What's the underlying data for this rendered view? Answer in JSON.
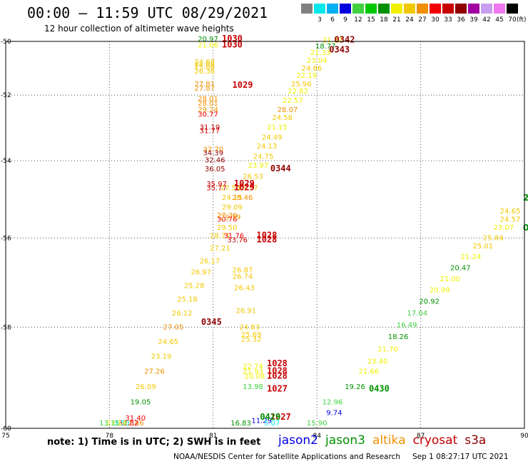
{
  "header": {
    "title": "00:00 – 11:59 UTC 08/29/2021",
    "subtitle": "12 hour collection of altimeter wave heights"
  },
  "color_scale": {
    "unit": "(ft)",
    "swatches": [
      {
        "label": "",
        "color": "#808080"
      },
      {
        "label": "3",
        "color": "#00e8e8"
      },
      {
        "label": "6",
        "color": "#00b0f0"
      },
      {
        "label": "9",
        "color": "#0000e0"
      },
      {
        "label": "12",
        "color": "#40d040"
      },
      {
        "label": "15",
        "color": "#00c800"
      },
      {
        "label": "18",
        "color": "#009000"
      },
      {
        "label": "21",
        "color": "#f0f000"
      },
      {
        "label": "24",
        "color": "#f0c800"
      },
      {
        "label": "27",
        "color": "#f09000"
      },
      {
        "label": "30",
        "color": "#f00000"
      },
      {
        "label": "33",
        "color": "#c80000"
      },
      {
        "label": "36",
        "color": "#900000"
      },
      {
        "label": "39",
        "color": "#a000a0"
      },
      {
        "label": "42",
        "color": "#c8a0f0"
      },
      {
        "label": "45",
        "color": "#f078f0"
      },
      {
        "label": "70",
        "color": "#000000"
      }
    ]
  },
  "map": {
    "lon_ticks": [
      75,
      78,
      81,
      84,
      87,
      90
    ],
    "lat_ticks": [
      -50,
      -52,
      -54,
      -56,
      -58,
      -60
    ],
    "lon_range": [
      75,
      90
    ],
    "lat_range": [
      -50,
      -60
    ]
  },
  "observations": [
    {
      "lon": 80.85,
      "lat": -50.0,
      "text": "20.97",
      "color": "#009000"
    },
    {
      "lon": 80.85,
      "lat": -50.25,
      "text": "21.06",
      "color": "#f0f000"
    },
    {
      "lon": 80.75,
      "lat": -50.9,
      "text": "24.68",
      "color": "#f0c800"
    },
    {
      "lon": 80.75,
      "lat": -51.0,
      "text": "24.08",
      "color": "#f0c800"
    },
    {
      "lon": 80.75,
      "lat": -51.1,
      "text": "25.08",
      "color": "#f0c800"
    },
    {
      "lon": 80.75,
      "lat": -51.25,
      "text": "26.36",
      "color": "#f0c800"
    },
    {
      "lon": 80.75,
      "lat": -51.7,
      "text": "27.81",
      "color": "#f09000"
    },
    {
      "lon": 80.75,
      "lat": -51.85,
      "text": "27.87",
      "color": "#f09000"
    },
    {
      "lon": 80.85,
      "lat": -52.2,
      "text": "28.01",
      "color": "#f09000"
    },
    {
      "lon": 80.85,
      "lat": -52.35,
      "text": "28.01",
      "color": "#f09000"
    },
    {
      "lon": 80.85,
      "lat": -52.55,
      "text": "29.24",
      "color": "#f09000"
    },
    {
      "lon": 80.85,
      "lat": -52.7,
      "text": "30.77",
      "color": "#f00000"
    },
    {
      "lon": 80.9,
      "lat": -53.1,
      "text": "31.19",
      "color": "#c80000"
    },
    {
      "lon": 80.9,
      "lat": -53.2,
      "text": "31.77",
      "color": "#c80000"
    },
    {
      "lon": 81.0,
      "lat": -53.75,
      "text": "32.70",
      "color": "#f09000"
    },
    {
      "lon": 81.0,
      "lat": -53.85,
      "text": "34.39",
      "color": "#900000"
    },
    {
      "lon": 81.05,
      "lat": -54.05,
      "text": "32.46",
      "color": "#900000"
    },
    {
      "lon": 81.05,
      "lat": -54.3,
      "text": "36.05",
      "color": "#900000"
    },
    {
      "lon": 81.1,
      "lat": -54.7,
      "text": "35.97",
      "color": "#c80000"
    },
    {
      "lon": 81.1,
      "lat": -54.8,
      "text": "35.77",
      "color": "#c80000"
    },
    {
      "lon": 81.5,
      "lat": -54.8,
      "text": "27.53",
      "color": "#f0c800"
    },
    {
      "lon": 81.55,
      "lat": -55.05,
      "text": "24.15",
      "color": "#f0c800"
    },
    {
      "lon": 81.55,
      "lat": -55.3,
      "text": "29.09",
      "color": "#f0c800"
    },
    {
      "lon": 81.4,
      "lat": -55.5,
      "text": "27.30",
      "color": "#f09000"
    },
    {
      "lon": 81.4,
      "lat": -55.6,
      "text": "30.76",
      "color": "#f00000"
    },
    {
      "lon": 81.5,
      "lat": -55.55,
      "text": "29.39",
      "color": "#f09000"
    },
    {
      "lon": 81.4,
      "lat": -55.8,
      "text": "29.50",
      "color": "#f0c800"
    },
    {
      "lon": 81.2,
      "lat": -56.0,
      "text": "28.71",
      "color": "#f0c800"
    },
    {
      "lon": 81.6,
      "lat": -56.0,
      "text": "31.76",
      "color": "#f00000"
    },
    {
      "lon": 81.7,
      "lat": -56.1,
      "text": "33.76",
      "color": "#c80000"
    },
    {
      "lon": 81.2,
      "lat": -56.3,
      "text": "27.21",
      "color": "#f0c800"
    },
    {
      "lon": 80.9,
      "lat": -56.6,
      "text": "26.17",
      "color": "#f0c800"
    },
    {
      "lon": 80.65,
      "lat": -56.85,
      "text": "26.97",
      "color": "#f0c800"
    },
    {
      "lon": 81.85,
      "lat": -56.8,
      "text": "26.87",
      "color": "#f0c800"
    },
    {
      "lon": 81.85,
      "lat": -56.95,
      "text": "26.74",
      "color": "#f0c800"
    },
    {
      "lon": 80.45,
      "lat": -57.15,
      "text": "25.28",
      "color": "#f0c800"
    },
    {
      "lon": 81.9,
      "lat": -57.2,
      "text": "26.43",
      "color": "#f0c800"
    },
    {
      "lon": 80.25,
      "lat": -57.45,
      "text": "25.18",
      "color": "#f0c800"
    },
    {
      "lon": 80.1,
      "lat": -57.75,
      "text": "26.12",
      "color": "#f0c800"
    },
    {
      "lon": 81.95,
      "lat": -57.7,
      "text": "26.91",
      "color": "#f0c800"
    },
    {
      "lon": 79.85,
      "lat": -58.05,
      "text": "27.05",
      "color": "#f09000"
    },
    {
      "lon": 82.05,
      "lat": -58.05,
      "text": "24.83",
      "color": "#f0c800"
    },
    {
      "lon": 82.1,
      "lat": -58.2,
      "text": "25.69",
      "color": "#f0c800"
    },
    {
      "lon": 82.1,
      "lat": -58.3,
      "text": "25.32",
      "color": "#f0c800"
    },
    {
      "lon": 79.7,
      "lat": -58.35,
      "text": "24.65",
      "color": "#f0c800"
    },
    {
      "lon": 79.5,
      "lat": -58.65,
      "text": "23.19",
      "color": "#f0c800"
    },
    {
      "lon": 82.15,
      "lat": -58.85,
      "text": "22.74",
      "color": "#f0f000"
    },
    {
      "lon": 82.15,
      "lat": -58.95,
      "text": "21.93",
      "color": "#f0f000"
    },
    {
      "lon": 82.2,
      "lat": -59.05,
      "text": "20.08",
      "color": "#f0f000"
    },
    {
      "lon": 79.3,
      "lat": -58.95,
      "text": "27.26",
      "color": "#f09000"
    },
    {
      "lon": 79.05,
      "lat": -59.25,
      "text": "26.09",
      "color": "#f0c800"
    },
    {
      "lon": 82.15,
      "lat": -59.25,
      "text": "13.98",
      "color": "#40d040"
    },
    {
      "lon": 78.9,
      "lat": -59.55,
      "text": "19.05",
      "color": "#009000"
    },
    {
      "lon": 78.75,
      "lat": -59.85,
      "text": "31.40",
      "color": "#f00000"
    },
    {
      "lon": 78.7,
      "lat": -60.1,
      "text": "22.46",
      "color": "#f09000"
    },
    {
      "lon": 82.4,
      "lat": -59.9,
      "text": "11.29",
      "color": "#0000e0"
    },
    {
      "lon": 78.55,
      "lat": -60.4,
      "text": "31.82",
      "color": "#f00000"
    },
    {
      "lon": 78.35,
      "lat": -60.7,
      "text": "3.50",
      "color": "#00e8e8"
    },
    {
      "lon": 78.2,
      "lat": -60.95,
      "text": "23.14",
      "color": "#f0f000"
    },
    {
      "lon": 78.0,
      "lat": -61.15,
      "text": "13.15",
      "color": "#40d040"
    },
    {
      "lon": 84.0,
      "lat": -60.1,
      "text": "15.90",
      "color": "#40d040"
    },
    {
      "lon": 82.7,
      "lat": -60.85,
      "text": "5.07",
      "color": "#00e8e8"
    },
    {
      "lon": 81.8,
      "lat": -61.1,
      "text": "16.83",
      "color": "#009000"
    },
    {
      "lon": 84.45,
      "lat": -50.05,
      "text": "21.32",
      "color": "#f0f000"
    },
    {
      "lon": 84.25,
      "lat": -50.3,
      "text": "18.77",
      "color": "#009000"
    },
    {
      "lon": 84.1,
      "lat": -50.55,
      "text": "21.33",
      "color": "#f0f000"
    },
    {
      "lon": 84.0,
      "lat": -50.85,
      "text": "23.04",
      "color": "#f0f000"
    },
    {
      "lon": 83.85,
      "lat": -51.15,
      "text": "24.86",
      "color": "#f0c800"
    },
    {
      "lon": 83.7,
      "lat": -51.4,
      "text": "22.19",
      "color": "#f0f000"
    },
    {
      "lon": 83.55,
      "lat": -51.7,
      "text": "25.96",
      "color": "#f0c800"
    },
    {
      "lon": 83.45,
      "lat": -51.95,
      "text": "22.82",
      "color": "#f0f000"
    },
    {
      "lon": 83.3,
      "lat": -52.25,
      "text": "22.57",
      "color": "#f0f000"
    },
    {
      "lon": 83.15,
      "lat": -52.55,
      "text": "28.07",
      "color": "#f09000"
    },
    {
      "lon": 83.0,
      "lat": -52.8,
      "text": "24.58",
      "color": "#f0c800"
    },
    {
      "lon": 82.85,
      "lat": -53.1,
      "text": "21.15",
      "color": "#f0f000"
    },
    {
      "lon": 82.7,
      "lat": -53.4,
      "text": "24.49",
      "color": "#f0c800"
    },
    {
      "lon": 82.55,
      "lat": -53.65,
      "text": "24.13",
      "color": "#f0c800"
    },
    {
      "lon": 82.45,
      "lat": -53.95,
      "text": "24.75",
      "color": "#f0c800"
    },
    {
      "lon": 82.3,
      "lat": -54.2,
      "text": "23.97",
      "color": "#f0f000"
    },
    {
      "lon": 82.15,
      "lat": -54.5,
      "text": "26.53",
      "color": "#f0c800"
    },
    {
      "lon": 82.0,
      "lat": -54.8,
      "text": "26.57",
      "color": "#f0c800"
    },
    {
      "lon": 81.85,
      "lat": -55.05,
      "text": "28.46",
      "color": "#f09000"
    },
    {
      "lon": 85.1,
      "lat": -59.25,
      "text": "19.26",
      "color": "#009000"
    },
    {
      "lon": 84.45,
      "lat": -59.55,
      "text": "12.96",
      "color": "#40d040"
    },
    {
      "lon": 84.5,
      "lat": -59.75,
      "text": "9.74",
      "color": "#0000e0"
    },
    {
      "lon": 85.5,
      "lat": -58.95,
      "text": "21.66",
      "color": "#f0f000"
    },
    {
      "lon": 85.75,
      "lat": -58.75,
      "text": "23.40",
      "color": "#f0f000"
    },
    {
      "lon": 86.05,
      "lat": -58.5,
      "text": "21.70",
      "color": "#f0f000"
    },
    {
      "lon": 86.35,
      "lat": -58.25,
      "text": "18.26",
      "color": "#009000"
    },
    {
      "lon": 86.6,
      "lat": -58.0,
      "text": "16.49",
      "color": "#40d040"
    },
    {
      "lon": 86.9,
      "lat": -57.75,
      "text": "17.04",
      "color": "#40d040"
    },
    {
      "lon": 87.25,
      "lat": -57.5,
      "text": "20.92",
      "color": "#009000"
    },
    {
      "lon": 87.55,
      "lat": -57.25,
      "text": "20.99",
      "color": "#f0f000"
    },
    {
      "lon": 87.85,
      "lat": -57.0,
      "text": "21.00",
      "color": "#f0f000"
    },
    {
      "lon": 88.15,
      "lat": -56.75,
      "text": "20.47",
      "color": "#009000"
    },
    {
      "lon": 88.45,
      "lat": -56.5,
      "text": "21.24",
      "color": "#f0f000"
    },
    {
      "lon": 88.8,
      "lat": -56.25,
      "text": "25.01",
      "color": "#f0c800"
    },
    {
      "lon": 89.1,
      "lat": -56.05,
      "text": "25.84",
      "color": "#f0c800"
    },
    {
      "lon": 89.4,
      "lat": -55.8,
      "text": "23.07",
      "color": "#f0f000"
    },
    {
      "lon": 89.65,
      "lat": -55.6,
      "text": "24.57",
      "color": "#f0c800"
    },
    {
      "lon": 89.9,
      "lat": -55.4,
      "text": "24.65",
      "color": "#f0c800"
    }
  ],
  "time_labels": [
    {
      "lon": 81.55,
      "lat": -50.0,
      "text": "1030",
      "color": "#c80000"
    },
    {
      "lon": 81.55,
      "lat": -50.25,
      "text": "1030",
      "color": "#c80000"
    },
    {
      "lon": 81.85,
      "lat": -51.75,
      "text": "1029",
      "color": "#c80000"
    },
    {
      "lon": 81.9,
      "lat": -54.7,
      "text": "1029",
      "color": "#c80000"
    },
    {
      "lon": 81.9,
      "lat": -54.8,
      "text": "1029",
      "color": "#c80000"
    },
    {
      "lon": 82.55,
      "lat": -56.0,
      "text": "1028",
      "color": "#c80000"
    },
    {
      "lon": 82.55,
      "lat": -56.1,
      "text": "1028",
      "color": "#c80000"
    },
    {
      "lon": 82.85,
      "lat": -58.8,
      "text": "1028",
      "color": "#c80000"
    },
    {
      "lon": 82.85,
      "lat": -58.95,
      "text": "1028",
      "color": "#c80000"
    },
    {
      "lon": 82.85,
      "lat": -59.05,
      "text": "1028",
      "color": "#c80000"
    },
    {
      "lon": 82.85,
      "lat": -59.3,
      "text": "1027",
      "color": "#c80000"
    },
    {
      "lon": 82.95,
      "lat": -61.05,
      "text": "1027",
      "color": "#c80000"
    },
    {
      "lon": 84.8,
      "lat": -50.05,
      "text": "0342",
      "color": "#900000"
    },
    {
      "lon": 84.65,
      "lat": -50.45,
      "text": "0343",
      "color": "#900000"
    },
    {
      "lon": 82.95,
      "lat": -54.3,
      "text": "0344",
      "color": "#900000"
    },
    {
      "lon": 80.95,
      "lat": -57.95,
      "text": "0345",
      "color": "#900000"
    },
    {
      "lon": 85.8,
      "lat": -59.3,
      "text": "0430",
      "color": "#009000"
    },
    {
      "lon": 82.65,
      "lat": -61.1,
      "text": "0429",
      "color": "#009000"
    }
  ],
  "edge_labels": [
    {
      "lon": 90.1,
      "lat": -55.0,
      "text": "2",
      "color": "#009000"
    },
    {
      "lon": 90.1,
      "lat": -55.75,
      "text": "0",
      "color": "#009000"
    }
  ],
  "footer": {
    "note": "note: 1) Time is in UTC; 2) SWH is in feet",
    "legend": [
      {
        "name": "jason2",
        "color": "#0000e0"
      },
      {
        "name": "jason3",
        "color": "#009000"
      },
      {
        "name": "altika",
        "color": "#f09000"
      },
      {
        "name": "cryosat",
        "color": "#c80000"
      },
      {
        "name": "s3a",
        "color": "#900000"
      }
    ],
    "credit": "NOAA/NESDIS Center for Satellite Applications and Research",
    "timestamp": "Sep  1 08:27:17 UTC 2021"
  }
}
